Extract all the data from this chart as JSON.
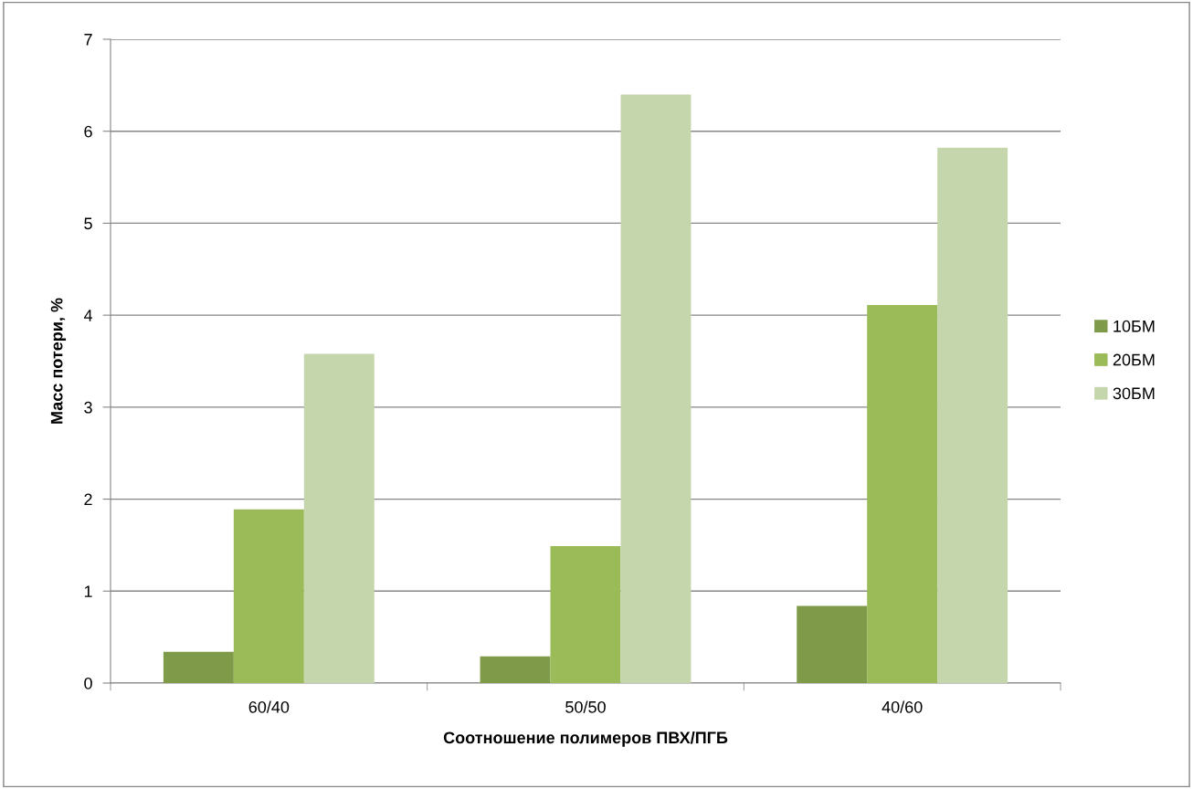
{
  "chart_data": {
    "type": "bar",
    "xlabel": "Соотношение полимеров ПВХ/ПГБ",
    "ylabel": "Масс потери, %",
    "categories": [
      "60/40",
      "50/50",
      "40/60"
    ],
    "series": [
      {
        "name": "10БМ",
        "color": "#7f9b4a",
        "values": [
          0.34,
          0.29,
          0.84
        ]
      },
      {
        "name": "20БМ",
        "color": "#9bbb59",
        "values": [
          1.89,
          1.49,
          4.11
        ]
      },
      {
        "name": "30БМ",
        "color": "#c6d6ac",
        "values": [
          3.58,
          6.4,
          5.82
        ]
      }
    ],
    "ylim": [
      0,
      7
    ],
    "yticks": [
      0,
      1,
      2,
      3,
      4,
      5,
      6,
      7
    ],
    "grid": "y",
    "legend": "right"
  }
}
